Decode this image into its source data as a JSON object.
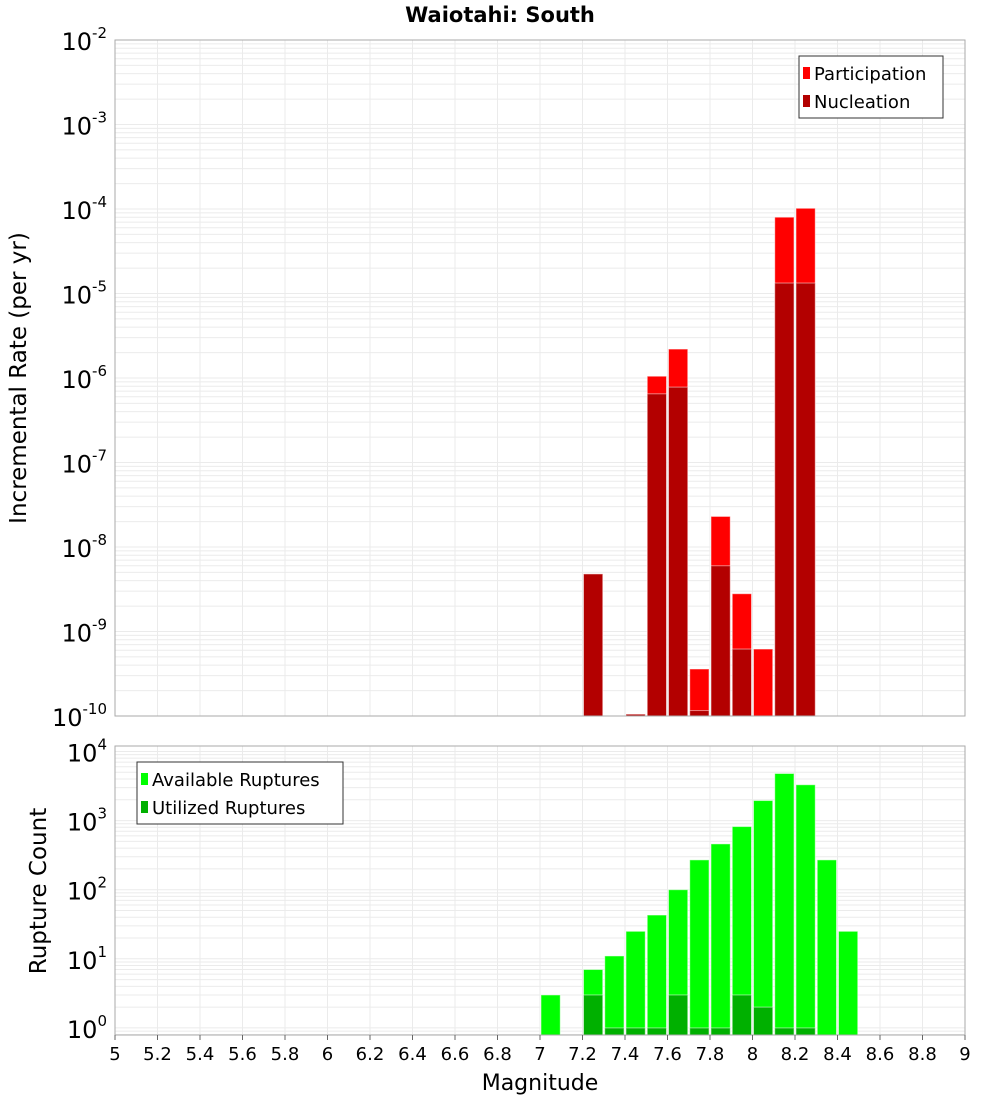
{
  "chart_data": [
    {
      "type": "bar",
      "title": "Waiotahi: South",
      "xlabel": "Magnitude",
      "ylabel": "Incremental Rate (per yr)",
      "yscale": "log",
      "xlim": [
        5,
        9
      ],
      "ylim": [
        1e-10,
        0.01
      ],
      "ytick_exponents": [
        -2,
        -3,
        -4,
        -5,
        -6,
        -7,
        -8,
        -9,
        -10
      ],
      "grid": true,
      "legend_position": "top-right",
      "bin_width": 0.1,
      "x": [
        7.25,
        7.45,
        7.55,
        7.65,
        7.75,
        7.85,
        7.95,
        8.05,
        8.15,
        8.25
      ],
      "series": [
        {
          "name": "Participation",
          "color": "#ff0000",
          "values": [
            4.8e-09,
            1.05e-10,
            1.05e-06,
            2.2e-06,
            3.6e-10,
            2.3e-08,
            2.8e-09,
            6.2e-10,
            8e-05,
            0.000102
          ]
        },
        {
          "name": "Nucleation",
          "color": "#b30000",
          "values": [
            4.8e-09,
            1.05e-10,
            6.5e-07,
            7.8e-07,
            1.16e-10,
            6e-09,
            6.2e-10,
            0,
            1.33e-05,
            1.33e-05
          ]
        }
      ]
    },
    {
      "type": "bar",
      "xlabel": "Magnitude",
      "ylabel": "Rupture Count",
      "yscale": "log",
      "xlim": [
        5,
        9
      ],
      "ylim": [
        0.79,
        12000
      ],
      "ytick_exponents": [
        4,
        3,
        2,
        1,
        0
      ],
      "xticks": [
        "5",
        "5.2",
        "5.4",
        "5.6",
        "5.8",
        "6",
        "6.2",
        "6.4",
        "6.6",
        "6.8",
        "7",
        "7.2",
        "7.4",
        "7.6",
        "7.8",
        "8",
        "8.2",
        "8.4",
        "8.6",
        "8.8",
        "9"
      ],
      "grid": true,
      "legend_position": "top-left",
      "bin_width": 0.1,
      "x": [
        7.05,
        7.25,
        7.35,
        7.45,
        7.55,
        7.65,
        7.75,
        7.85,
        7.95,
        8.05,
        8.15,
        8.25,
        8.35,
        8.45
      ],
      "series": [
        {
          "name": "Available Ruptures",
          "color": "#00ff00",
          "values": [
            3,
            7,
            11,
            25,
            43,
            100,
            270,
            460,
            820,
            1950,
            4800,
            3300,
            270,
            25
          ]
        },
        {
          "name": "Utilized Ruptures",
          "color": "#00b000",
          "values": [
            0,
            3,
            1,
            1,
            1,
            3,
            1,
            1,
            3,
            2,
            1,
            1,
            0,
            0
          ]
        }
      ]
    }
  ]
}
